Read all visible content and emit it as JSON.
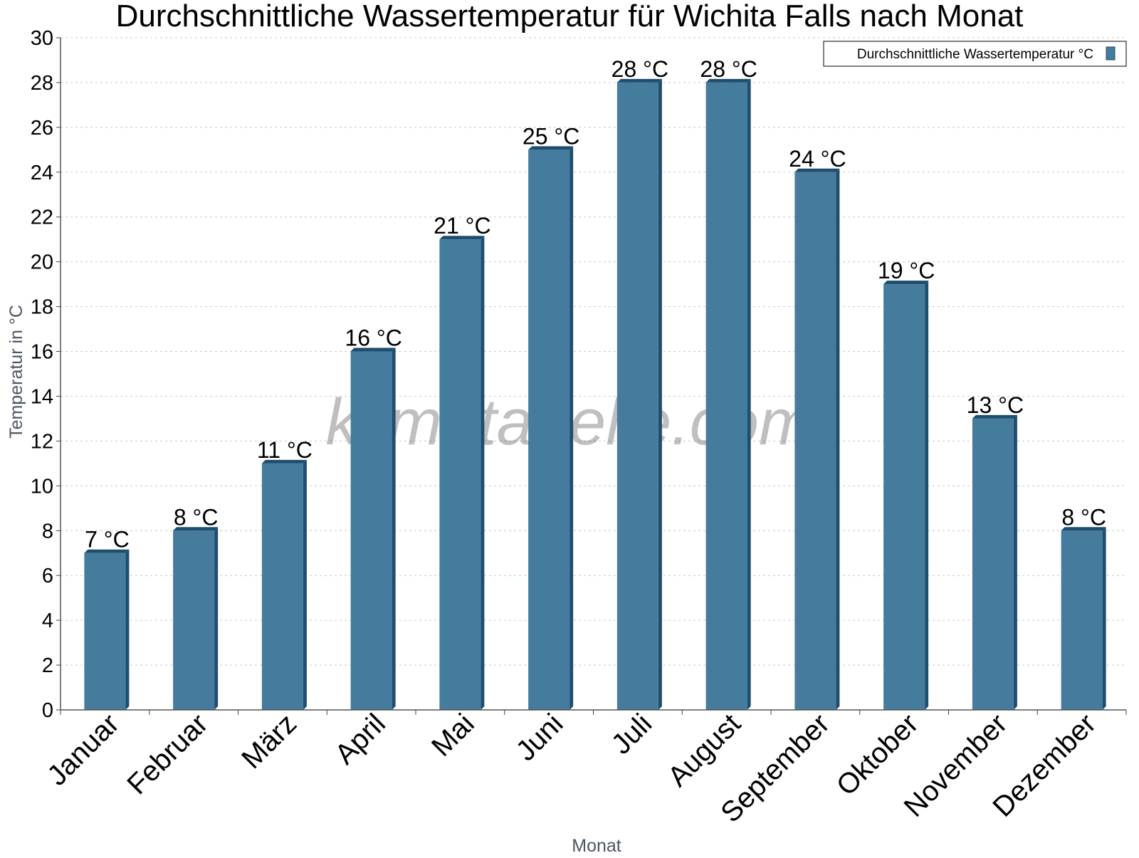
{
  "chart_data": {
    "type": "bar",
    "title": "Durchschnittliche Wassertemperatur für Wichita Falls nach Monat",
    "xlabel": "Monat",
    "ylabel": "Temperatur in °C",
    "ylim": [
      0,
      30
    ],
    "yticks": [
      0,
      2,
      4,
      6,
      8,
      10,
      12,
      14,
      16,
      18,
      20,
      22,
      24,
      26,
      28,
      30
    ],
    "grid": true,
    "legend_position": "top-right",
    "categories": [
      "Januar",
      "Februar",
      "März",
      "April",
      "Mai",
      "Juni",
      "Juli",
      "August",
      "September",
      "Oktober",
      "November",
      "Dezember"
    ],
    "series": [
      {
        "name": "Durchschnittliche Wassertemperatur °C",
        "values": [
          7,
          8,
          11,
          16,
          21,
          25,
          28,
          28,
          24,
          19,
          13,
          8
        ],
        "labels": [
          "7 °C",
          "8 °C",
          "11 °C",
          "16 °C",
          "21 °C",
          "25 °C",
          "28 °C",
          "28 °C",
          "24 °C",
          "19 °C",
          "13 °C",
          "8 °C"
        ],
        "color": "#457b9d",
        "edge_color": "#1d4e6e"
      }
    ],
    "watermark": "klimatabelle.com"
  }
}
